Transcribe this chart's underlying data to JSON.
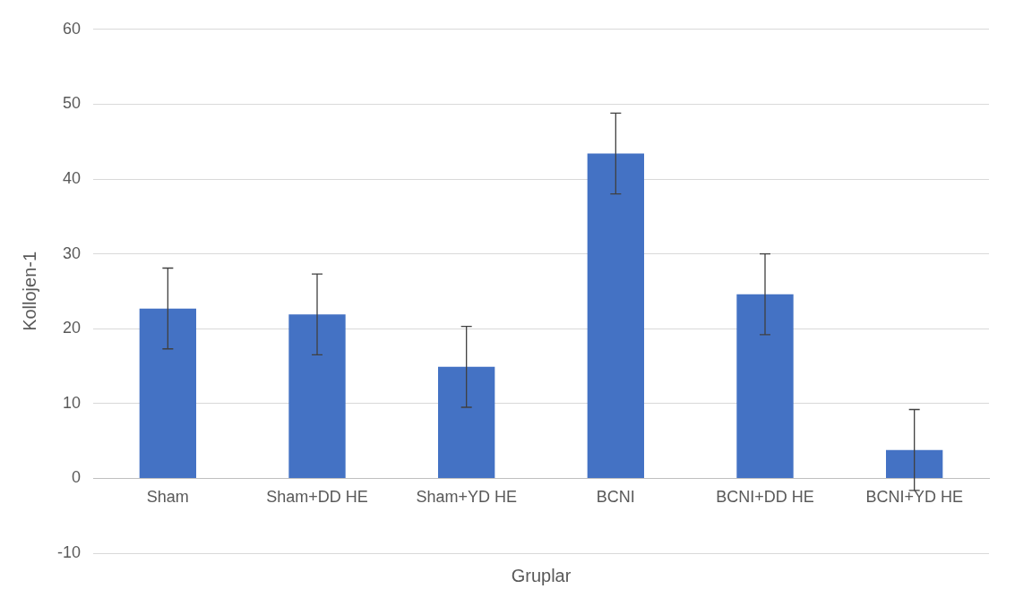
{
  "chart_data": {
    "type": "bar",
    "xlabel": "Gruplar",
    "ylabel": "Kollojen-1",
    "categories": [
      "Sham",
      "Sham+DD HE",
      "Sham+YD HE",
      "BCNI",
      "BCNI+DD HE",
      "BCNI+YD HE"
    ],
    "values": [
      22.7,
      21.9,
      14.9,
      43.4,
      24.6,
      3.8
    ],
    "errors": [
      5.4,
      5.4,
      5.4,
      5.4,
      5.4,
      5.4
    ],
    "color": "#4472c4",
    "ylim": [
      -10,
      60
    ],
    "yticks": [
      -10,
      0,
      10,
      20,
      30,
      40,
      50,
      60
    ],
    "grid": "y"
  }
}
